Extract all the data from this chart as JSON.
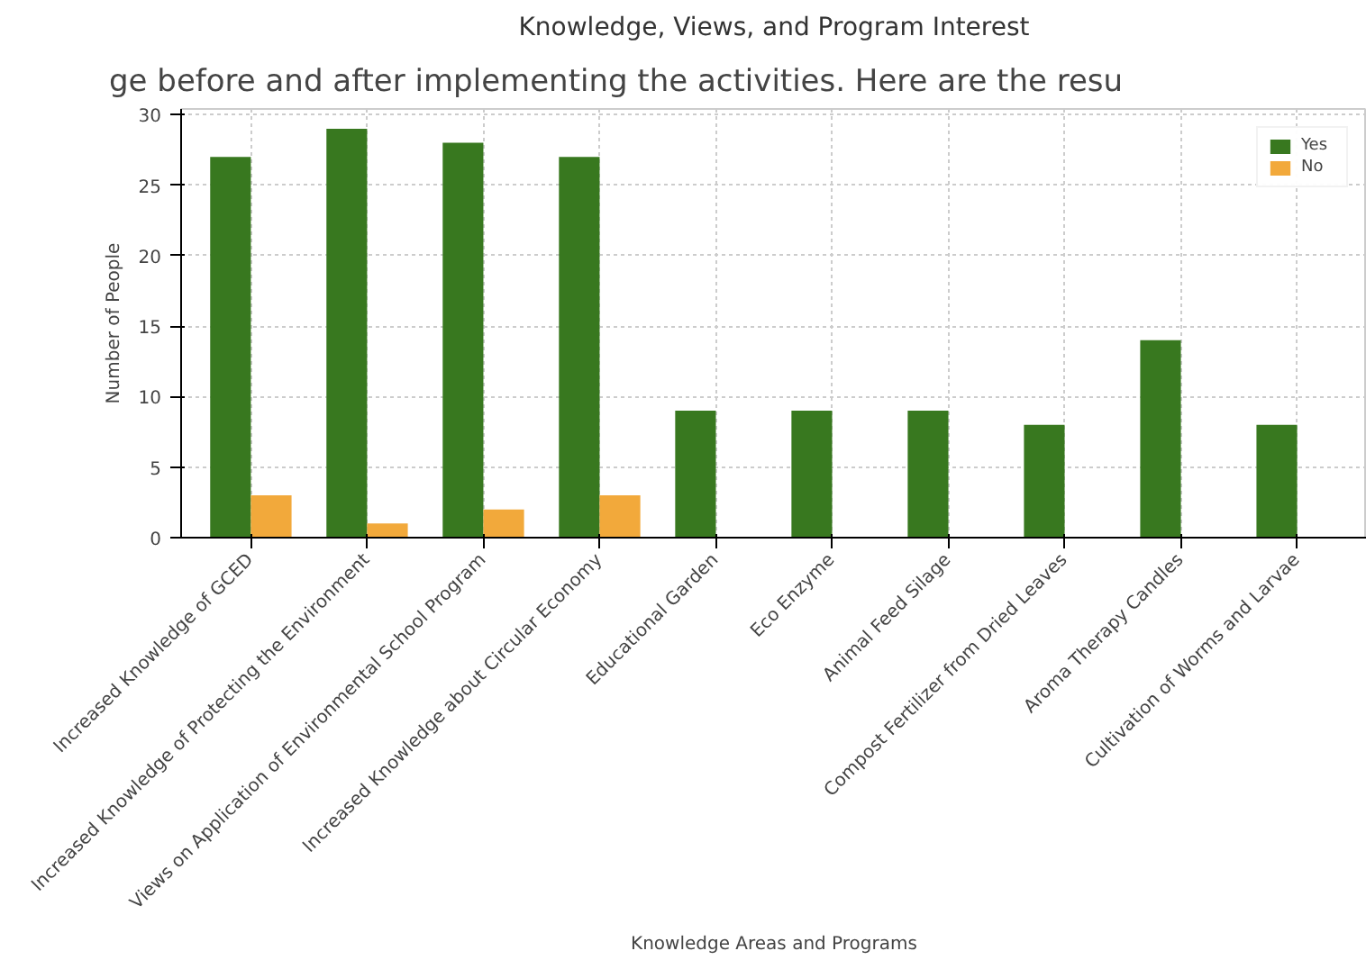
{
  "chart_data": {
    "type": "bar",
    "title": "Knowledge, Views, and Program Interest",
    "xlabel": "Knowledge Areas and Programs",
    "ylabel": "Number of People",
    "annotations": [
      "ge before and after implementing the activities. Here are the resu"
    ],
    "categories": [
      "Increased Knowledge of GCED",
      "Increased Knowledge of Protecting the Environment",
      "Views on Application of Environmental School Program",
      "Increased Knowledge about Circular Economy",
      "Educational Garden",
      "Eco Enzyme",
      "Animal Feed Silage",
      "Compost Fertilizer from Dried Leaves",
      "Aroma Therapy Candles",
      "Cultivation of Worms and Larvae"
    ],
    "series": [
      {
        "name": "Yes",
        "color": "#38781f",
        "values": [
          27,
          29,
          28,
          27,
          9,
          9,
          9,
          8,
          14,
          8
        ]
      },
      {
        "name": "No",
        "color": "#f2a93b",
        "values": [
          3,
          1,
          2,
          3,
          0,
          0,
          0,
          0,
          0,
          0
        ]
      }
    ],
    "ylim": [
      0,
      30.4
    ],
    "yticks": [
      0,
      5,
      10,
      15,
      20,
      25,
      30
    ],
    "grid": true,
    "legend": "top right"
  }
}
